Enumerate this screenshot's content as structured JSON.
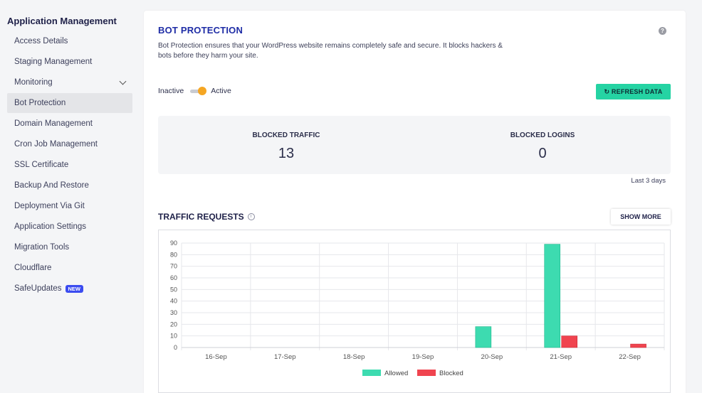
{
  "sidebar": {
    "title": "Application Management",
    "items": [
      {
        "label": "Access Details"
      },
      {
        "label": "Staging Management"
      },
      {
        "label": "Monitoring"
      },
      {
        "label": "Bot Protection"
      },
      {
        "label": "Domain Management"
      },
      {
        "label": "Cron Job Management"
      },
      {
        "label": "SSL Certificate"
      },
      {
        "label": "Backup And Restore"
      },
      {
        "label": "Deployment Via Git"
      },
      {
        "label": "Application Settings"
      },
      {
        "label": "Migration Tools"
      },
      {
        "label": "Cloudflare"
      },
      {
        "label": "SafeUpdates",
        "badge": "NEW"
      }
    ]
  },
  "main": {
    "title": "BOT PROTECTION",
    "description": "Bot Protection ensures that your WordPress website remains completely safe and secure. It blocks hackers & bots before they harm your site.",
    "toggle": {
      "off_label": "Inactive",
      "on_label": "Active",
      "state": "on"
    },
    "refresh_label": "↻ REFRESH DATA",
    "stats": [
      {
        "label": "BLOCKED TRAFFIC",
        "value": "13"
      },
      {
        "label": "BLOCKED LOGINS",
        "value": "0"
      }
    ],
    "period": "Last 3 days",
    "traffic_title": "TRAFFIC REQUESTS",
    "show_more_label": "SHOW MORE"
  },
  "colors": {
    "accent": "#25d3a3",
    "allowed": "#3ddbb0",
    "blocked": "#f0444f",
    "title": "#1f2da6"
  },
  "chart_data": {
    "type": "bar",
    "categories": [
      "16-Sep",
      "17-Sep",
      "18-Sep",
      "19-Sep",
      "20-Sep",
      "21-Sep",
      "22-Sep"
    ],
    "series": [
      {
        "name": "Allowed",
        "values": [
          0,
          0,
          0,
          0,
          18,
          89,
          0
        ]
      },
      {
        "name": "Blocked",
        "values": [
          0,
          0,
          0,
          0,
          0,
          10,
          3
        ]
      }
    ],
    "yticks": [
      0,
      10,
      20,
      30,
      40,
      50,
      60,
      70,
      80,
      90
    ],
    "ylim": [
      0,
      90
    ],
    "legend": "bottom"
  }
}
